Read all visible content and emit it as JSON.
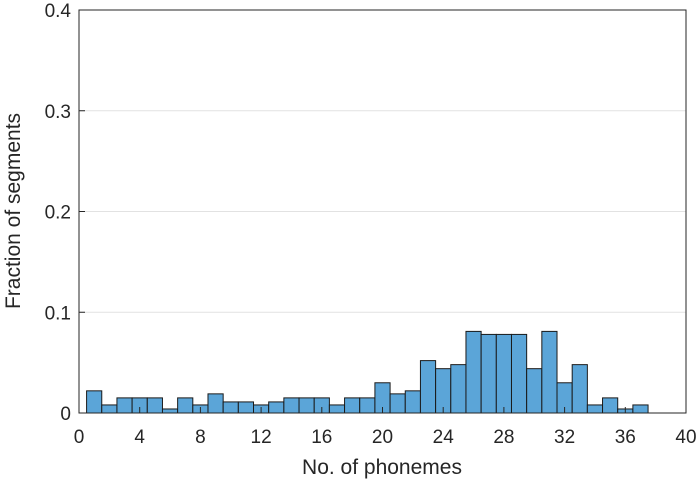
{
  "chart_data": {
    "type": "bar",
    "title": "",
    "xlabel": "No. of phonemes",
    "ylabel": "Fraction of segments",
    "xlim": [
      0,
      40
    ],
    "ylim": [
      0,
      0.4
    ],
    "xticks": [
      "0",
      "4",
      "8",
      "12",
      "16",
      "20",
      "24",
      "28",
      "32",
      "36",
      "40"
    ],
    "yticks": [
      "0",
      "0.1",
      "0.2",
      "0.3",
      "0.4"
    ],
    "grid": "horizontal",
    "bar_color": "#5ba5d8",
    "bin_width": 1,
    "bin_edges_start": 0.5,
    "values": [
      0.022,
      0.008,
      0.015,
      0.015,
      0.015,
      0.004,
      0.015,
      0.008,
      0.019,
      0.011,
      0.011,
      0.008,
      0.011,
      0.015,
      0.015,
      0.015,
      0.008,
      0.015,
      0.015,
      0.03,
      0.019,
      0.022,
      0.052,
      0.044,
      0.048,
      0.081,
      0.078,
      0.078,
      0.078,
      0.044,
      0.081,
      0.03,
      0.048,
      0.008,
      0.015,
      0.004,
      0.008
    ]
  }
}
